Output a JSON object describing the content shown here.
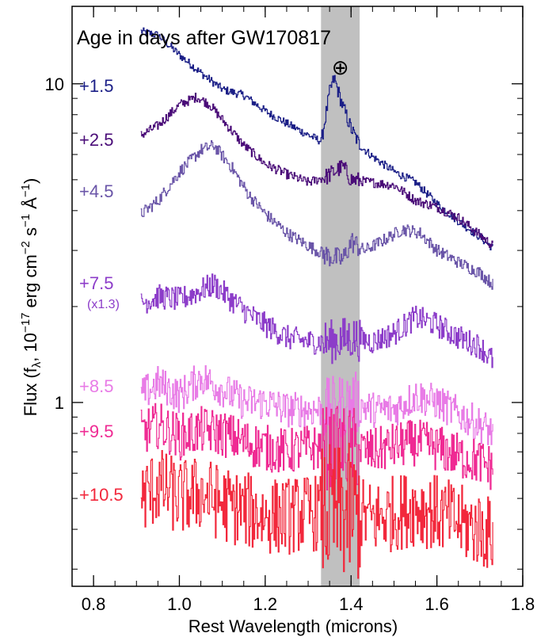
{
  "chart_data": {
    "type": "line",
    "title": "Age in days after GW170817",
    "xlabel": "Rest Wavelength (microns)",
    "ylabel_parts": [
      "Flux (f",
      "λ",
      ", 10",
      "−17",
      " erg cm",
      "−2",
      " s",
      "−1",
      " Å",
      "−1",
      ")"
    ],
    "xlim": [
      0.75,
      1.8
    ],
    "ylim": [
      0.265,
      17.5
    ],
    "yscale": "log",
    "x_ticks": [
      "0.8",
      "1.0",
      "1.2",
      "1.4",
      "1.6",
      "1.8"
    ],
    "x_tick_values": [
      0.8,
      1.0,
      1.2,
      1.4,
      1.6,
      1.8
    ],
    "y_ticks": [
      "1",
      "10"
    ],
    "y_tick_values": [
      1,
      10
    ],
    "telluric_band": {
      "x": [
        1.33,
        1.42
      ],
      "symbol": "⊕",
      "color": "#c0c0c0"
    },
    "series": [
      {
        "name": "+1.5",
        "color": "#1b1f87",
        "x": [
          0.91,
          0.95,
          1.0,
          1.05,
          1.1,
          1.15,
          1.2,
          1.25,
          1.3,
          1.33,
          1.35,
          1.36,
          1.38,
          1.4,
          1.42,
          1.45,
          1.5,
          1.55,
          1.6,
          1.65,
          1.7,
          1.73
        ],
        "y": [
          14.6,
          14.2,
          12.3,
          10.8,
          9.6,
          9.2,
          8.2,
          7.5,
          6.9,
          6.6,
          9.5,
          10.4,
          8.5,
          7.2,
          6.4,
          5.9,
          5.3,
          4.9,
          4.2,
          3.7,
          3.3,
          3.05
        ]
      },
      {
        "name": "+2.5",
        "color": "#4a0c78",
        "x": [
          0.91,
          0.95,
          1.0,
          1.04,
          1.07,
          1.1,
          1.15,
          1.2,
          1.25,
          1.3,
          1.34,
          1.38,
          1.4,
          1.45,
          1.5,
          1.55,
          1.6,
          1.65,
          1.7,
          1.73
        ],
        "y": [
          6.9,
          7.4,
          8.6,
          9.1,
          8.6,
          7.7,
          6.4,
          5.6,
          5.2,
          4.9,
          5.1,
          5.5,
          5.0,
          4.9,
          4.8,
          4.3,
          4.1,
          3.8,
          3.35,
          3.1
        ]
      },
      {
        "name": "+4.5",
        "color": "#6a55a8",
        "x": [
          0.91,
          0.95,
          1.0,
          1.05,
          1.08,
          1.12,
          1.16,
          1.2,
          1.25,
          1.3,
          1.34,
          1.38,
          1.4,
          1.43,
          1.47,
          1.52,
          1.56,
          1.6,
          1.65,
          1.7,
          1.73
        ],
        "y": [
          3.9,
          4.3,
          5.3,
          6.2,
          6.4,
          5.5,
          4.5,
          3.9,
          3.4,
          3.1,
          2.9,
          2.8,
          3.2,
          3.0,
          3.2,
          3.5,
          3.4,
          3.0,
          2.75,
          2.55,
          2.35
        ]
      },
      {
        "name": "+7.5",
        "annotation": "(x1.3)",
        "color": "#8c3cc9",
        "x": [
          0.91,
          0.95,
          1.0,
          1.05,
          1.08,
          1.12,
          1.16,
          1.2,
          1.25,
          1.3,
          1.35,
          1.4,
          1.45,
          1.5,
          1.55,
          1.6,
          1.65,
          1.7,
          1.73
        ],
        "y": [
          2.05,
          2.15,
          2.1,
          2.25,
          2.35,
          2.1,
          1.9,
          1.75,
          1.6,
          1.55,
          1.55,
          1.6,
          1.55,
          1.65,
          1.85,
          1.75,
          1.6,
          1.5,
          1.35
        ]
      },
      {
        "name": "+8.5",
        "color": "#e87be6",
        "x": [
          0.91,
          0.95,
          1.0,
          1.05,
          1.1,
          1.15,
          1.2,
          1.25,
          1.3,
          1.35,
          1.4,
          1.45,
          1.5,
          1.55,
          1.6,
          1.65,
          1.7,
          1.73
        ],
        "y": [
          1.05,
          1.15,
          1.05,
          1.2,
          1.1,
          1.0,
          1.0,
          0.95,
          0.95,
          0.95,
          1.0,
          0.95,
          0.95,
          1.05,
          1.0,
          0.92,
          0.85,
          0.8
        ]
      },
      {
        "name": "+9.5",
        "color": "#ef2a93",
        "x": [
          0.91,
          0.95,
          1.0,
          1.05,
          1.1,
          1.15,
          1.2,
          1.25,
          1.3,
          1.35,
          1.4,
          1.45,
          1.5,
          1.55,
          1.6,
          1.65,
          1.7,
          1.73
        ],
        "y": [
          0.8,
          0.85,
          0.78,
          0.82,
          0.8,
          0.75,
          0.72,
          0.7,
          0.72,
          0.72,
          0.72,
          0.7,
          0.73,
          0.75,
          0.72,
          0.68,
          0.65,
          0.62
        ]
      },
      {
        "name": "+10.5",
        "color": "#f2283c",
        "x": [
          0.91,
          0.95,
          1.0,
          1.05,
          1.1,
          1.15,
          1.2,
          1.25,
          1.3,
          1.35,
          1.4,
          1.45,
          1.5,
          1.55,
          1.6,
          1.65,
          1.7,
          1.73
        ],
        "y": [
          0.5,
          0.55,
          0.5,
          0.52,
          0.48,
          0.46,
          0.44,
          0.44,
          0.45,
          0.45,
          0.45,
          0.43,
          0.45,
          0.47,
          0.45,
          0.42,
          0.4,
          0.38
        ]
      }
    ]
  }
}
